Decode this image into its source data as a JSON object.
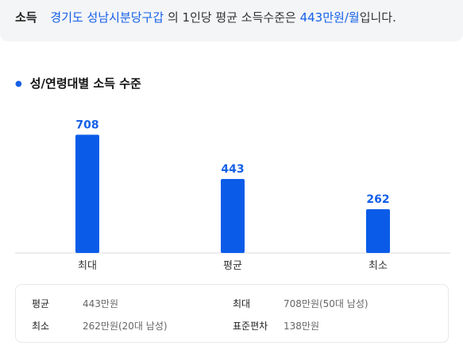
{
  "summary": {
    "label": "소득",
    "region": "경기도 성남시분당구갑",
    "mid_text": "의 1인당 평균 소득수준은",
    "amount": "443만원/월",
    "end_text": "입니다."
  },
  "section": {
    "title": "성/연령대별 소득 수준",
    "bullet": "●"
  },
  "chart_data": {
    "type": "bar",
    "title": "",
    "categories": [
      "최대",
      "평균",
      "최소"
    ],
    "values": [
      708,
      443,
      262
    ],
    "ylim": [
      0,
      800
    ],
    "grid": false,
    "bar_color": "#0a5ce8",
    "label_color": "#1560e8"
  },
  "stats": {
    "avg_label": "평균",
    "avg_value": "443만원",
    "max_label": "최대",
    "max_value": "708만원(50대 남성)",
    "min_label": "최소",
    "min_value": "262만원(20대 남성)",
    "std_label": "표준편차",
    "std_value": "138만원"
  }
}
